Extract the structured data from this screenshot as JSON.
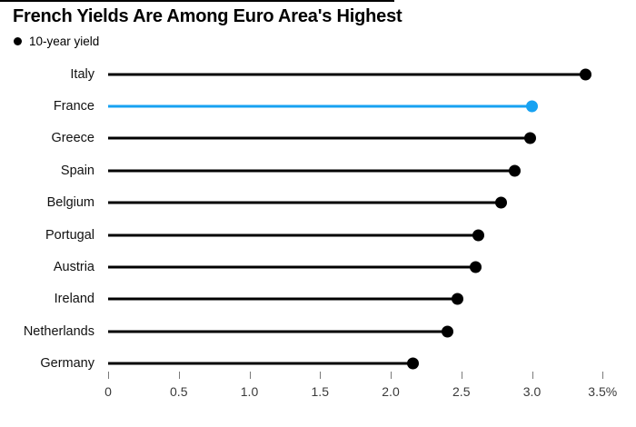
{
  "chart_data": {
    "type": "bar",
    "style": "lollipop",
    "orientation": "horizontal",
    "title": "French Yields Are Among Euro Area's Highest",
    "legend": [
      {
        "label": "10-year yield",
        "marker": "dot",
        "color": "#000000"
      }
    ],
    "legend_position": "top-left",
    "categories": [
      "Italy",
      "France",
      "Greece",
      "Spain",
      "Belgium",
      "Portugal",
      "Austria",
      "Ireland",
      "Netherlands",
      "Germany"
    ],
    "values": [
      3.38,
      3.0,
      2.99,
      2.88,
      2.78,
      2.62,
      2.6,
      2.47,
      2.4,
      2.16
    ],
    "unit_suffix": "%",
    "highlight_category": "France",
    "highlight_color": "#17a2f2",
    "default_color": "#000000",
    "xlabel": "",
    "ylabel": "",
    "xlim": [
      0,
      3.5
    ],
    "grid": false,
    "x_ticks": [
      {
        "value": 0,
        "label": "0"
      },
      {
        "value": 0.5,
        "label": "0.5"
      },
      {
        "value": 1.0,
        "label": "1.0"
      },
      {
        "value": 1.5,
        "label": "1.5"
      },
      {
        "value": 2.0,
        "label": "2.0"
      },
      {
        "value": 2.5,
        "label": "2.5"
      },
      {
        "value": 3.0,
        "label": "3.0"
      },
      {
        "value": 3.5,
        "label": "3.5%"
      }
    ]
  }
}
